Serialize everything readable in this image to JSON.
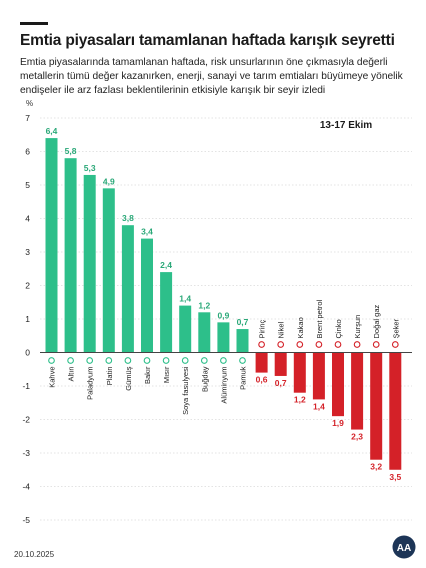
{
  "header": {
    "title": "Emtia piyasaları tamamlanan haftada karışık seyretti",
    "subtitle": "Emtia piyasalarında tamamlanan haftada, risk unsurlarının öne çıkmasıyla değerli metallerin tümü değer kazanırken, enerji, sanayi ve tarım emtiaları büyümeye yönelik endişeler ile arz fazlası beklentilerinin etkisiyle karışık bir seyir izledi"
  },
  "footer": {
    "date": "20.10.2025",
    "logo": "AA"
  },
  "colors": {
    "positive": "#2dbf8a",
    "negative": "#d42128",
    "value_positive": "#2aa878"
  },
  "chart_data": {
    "type": "bar",
    "ylabel": "%",
    "annotation": "13-17 Ekim",
    "ylim": [
      -5,
      7
    ],
    "yticks": [
      -5,
      -4,
      -3,
      -2,
      -1,
      0,
      1,
      2,
      3,
      4,
      5,
      6,
      7
    ],
    "categories": [
      "Kahve",
      "Altın",
      "Paladyum",
      "Platin",
      "Gümüş",
      "Bakır",
      "Mısır",
      "Soya fasulyesi",
      "Buğday",
      "Alüminyum",
      "Pamuk",
      "Pirinç",
      "Nikel",
      "Kakao",
      "Brent petrol",
      "Çinko",
      "Kurşun",
      "Doğal gaz",
      "Şeker"
    ],
    "values": [
      6.4,
      5.8,
      5.3,
      4.9,
      3.8,
      3.4,
      2.4,
      1.4,
      1.2,
      0.9,
      0.7,
      -0.6,
      -0.7,
      -1.2,
      -1.4,
      -1.9,
      -2.3,
      -3.2,
      -3.5
    ],
    "value_labels": [
      "6,4",
      "5,8",
      "5,3",
      "4,9",
      "3,8",
      "3,4",
      "2,4",
      "1,4",
      "1,2",
      "0,9",
      "0,7",
      "0,6",
      "0,7",
      "1,2",
      "1,4",
      "1,9",
      "2,3",
      "3,2",
      "3,5"
    ],
    "icons": [
      "coffee-icon",
      "gold-icon",
      "palladium-icon",
      "platinum-icon",
      "silver-icon",
      "copper-icon",
      "corn-icon",
      "soybean-icon",
      "wheat-icon",
      "aluminum-icon",
      "cotton-icon",
      "rice-icon",
      "nickel-icon",
      "cocoa-icon",
      "oil-barrel-icon",
      "zinc-icon",
      "lead-icon",
      "gas-flame-icon",
      "sugar-icon"
    ]
  }
}
